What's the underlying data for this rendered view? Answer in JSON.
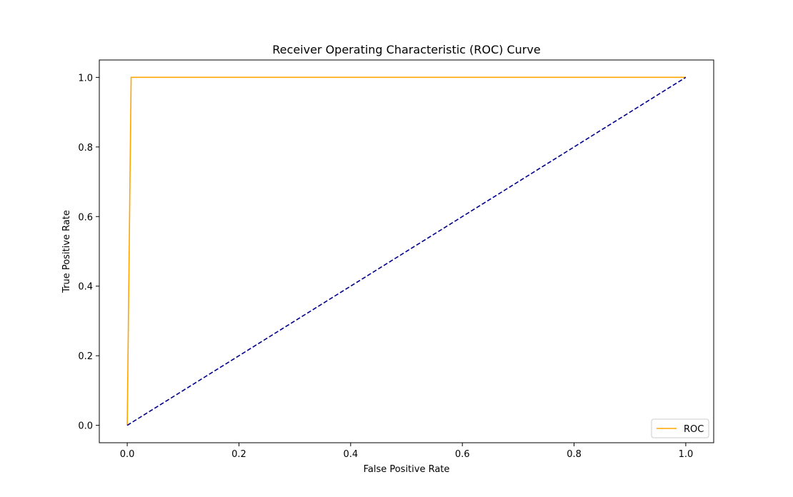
{
  "chart_data": {
    "type": "line",
    "title": "Receiver Operating Characteristic (ROC) Curve",
    "xlabel": "False Positive Rate",
    "ylabel": "True Positive Rate",
    "xlim": [
      -0.05,
      1.05
    ],
    "ylim": [
      -0.05,
      1.05
    ],
    "xticks": [
      0.0,
      0.2,
      0.4,
      0.6,
      0.8,
      1.0
    ],
    "yticks": [
      0.0,
      0.2,
      0.4,
      0.6,
      0.8,
      1.0
    ],
    "xtick_labels": [
      "0.0",
      "0.2",
      "0.4",
      "0.6",
      "0.8",
      "1.0"
    ],
    "ytick_labels": [
      "0.0",
      "0.2",
      "0.4",
      "0.6",
      "0.8",
      "1.0"
    ],
    "grid": false,
    "legend_position": "lower-right",
    "series": [
      {
        "name": "ROC",
        "color": "#ffa500",
        "style": "solid",
        "x": [
          0.0,
          0.007,
          1.0
        ],
        "y": [
          0.0,
          1.0,
          1.0
        ]
      },
      {
        "color": "#00008b",
        "style": "dashed",
        "x": [
          0.0,
          1.0
        ],
        "y": [
          0.0,
          1.0
        ]
      }
    ]
  }
}
